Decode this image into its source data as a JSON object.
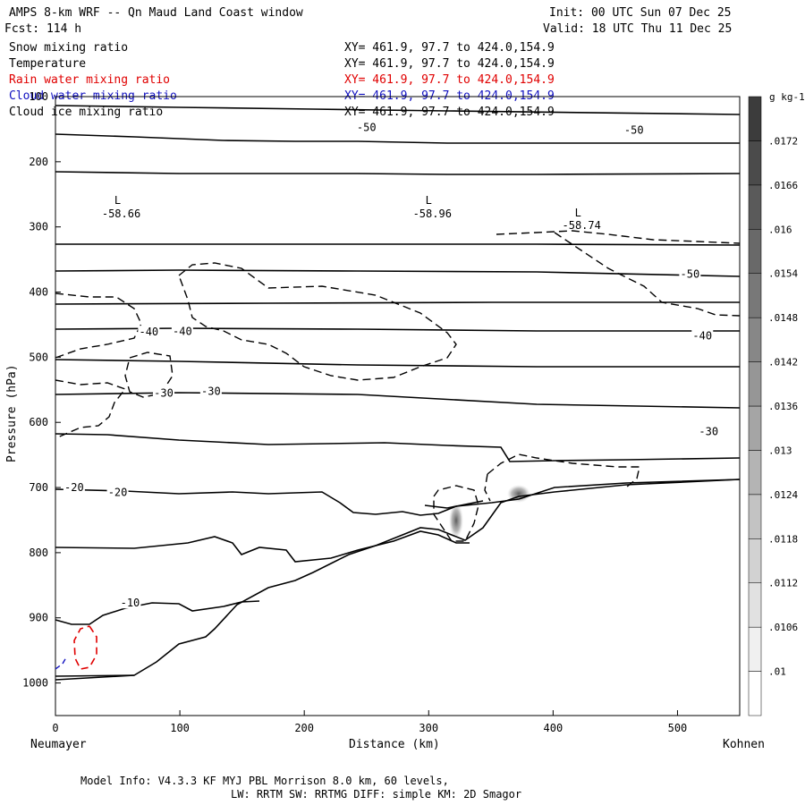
{
  "header": {
    "title": "AMPS 8-km WRF -- Qn Maud Land Coast window",
    "fcst": "Fcst:  114 h",
    "init": "Init: 00 UTC Sun 07 Dec 25",
    "valid": "Valid: 18 UTC Thu 11 Dec 25"
  },
  "legend": [
    {
      "name": "Snow mixing ratio",
      "xy": "XY= 461.9, 97.7 to 424.0,154.9",
      "color": "#000000"
    },
    {
      "name": "Temperature",
      "xy": "XY= 461.9, 97.7 to 424.0,154.9",
      "color": "#000000"
    },
    {
      "name": "Rain water mixing ratio",
      "xy": "XY= 461.9, 97.7 to 424.0,154.9",
      "color": "#e00000"
    },
    {
      "name": "Cloud water mixing ratio",
      "xy": "XY= 461.9, 97.7 to 424.0,154.9",
      "color": "#1010c0"
    },
    {
      "name": "Cloud ice mixing ratio",
      "xy": "XY= 461.9, 97.7 to 424.0,154.9",
      "color": "#000000"
    }
  ],
  "footer": {
    "line1": "Model Info: V4.3.3   KF      MYJ PBL  Morrison            8.0 km,  60 levels,",
    "line2": "LW: RRTM SW: RRTMG   DIFF: simple KM: 2D Smagor"
  },
  "chart_data": {
    "type": "cross-section contour",
    "xlabel": "Distance (km)",
    "ylabel": "Pressure (hPa)",
    "xlim": [
      0,
      550
    ],
    "ylim": [
      1050,
      100
    ],
    "xticks": [
      0,
      100,
      200,
      300,
      400,
      500
    ],
    "yticks": [
      100,
      200,
      300,
      400,
      500,
      600,
      700,
      800,
      900,
      1000
    ],
    "x_start_label": "Neumayer",
    "x_end_label": "Kohnen",
    "colorbar": {
      "unit": "g kg-1",
      "levels": [
        ".01",
        ".0106",
        ".0112",
        ".0118",
        ".0124",
        ".013",
        ".0136",
        ".0142",
        ".0148",
        ".0154",
        ".016",
        ".0166",
        ".0172"
      ]
    },
    "temperature_labels": [
      {
        "text": "-50",
        "x": 250,
        "p": 150
      },
      {
        "text": "-50",
        "x": 465,
        "p": 154
      },
      {
        "text": "-50",
        "x": 510,
        "p": 375
      },
      {
        "text": "-40",
        "x": 75,
        "p": 464
      },
      {
        "text": "-40",
        "x": 102,
        "p": 463
      },
      {
        "text": "-40",
        "x": 520,
        "p": 470
      },
      {
        "text": "-30",
        "x": 87,
        "p": 558
      },
      {
        "text": "-30",
        "x": 125,
        "p": 555
      },
      {
        "text": "-30",
        "x": 525,
        "p": 617
      },
      {
        "text": "-20",
        "x": 15,
        "p": 703
      },
      {
        "text": "-20",
        "x": 50,
        "p": 710
      },
      {
        "text": "-10",
        "x": 60,
        "p": 880
      }
    ],
    "lows": [
      {
        "label": "L",
        "value": "-58.66",
        "x": 50
      },
      {
        "label": "L",
        "value": "-58.96",
        "x": 300
      },
      {
        "label": "L",
        "value": "-58.74",
        "x": 420
      }
    ]
  }
}
